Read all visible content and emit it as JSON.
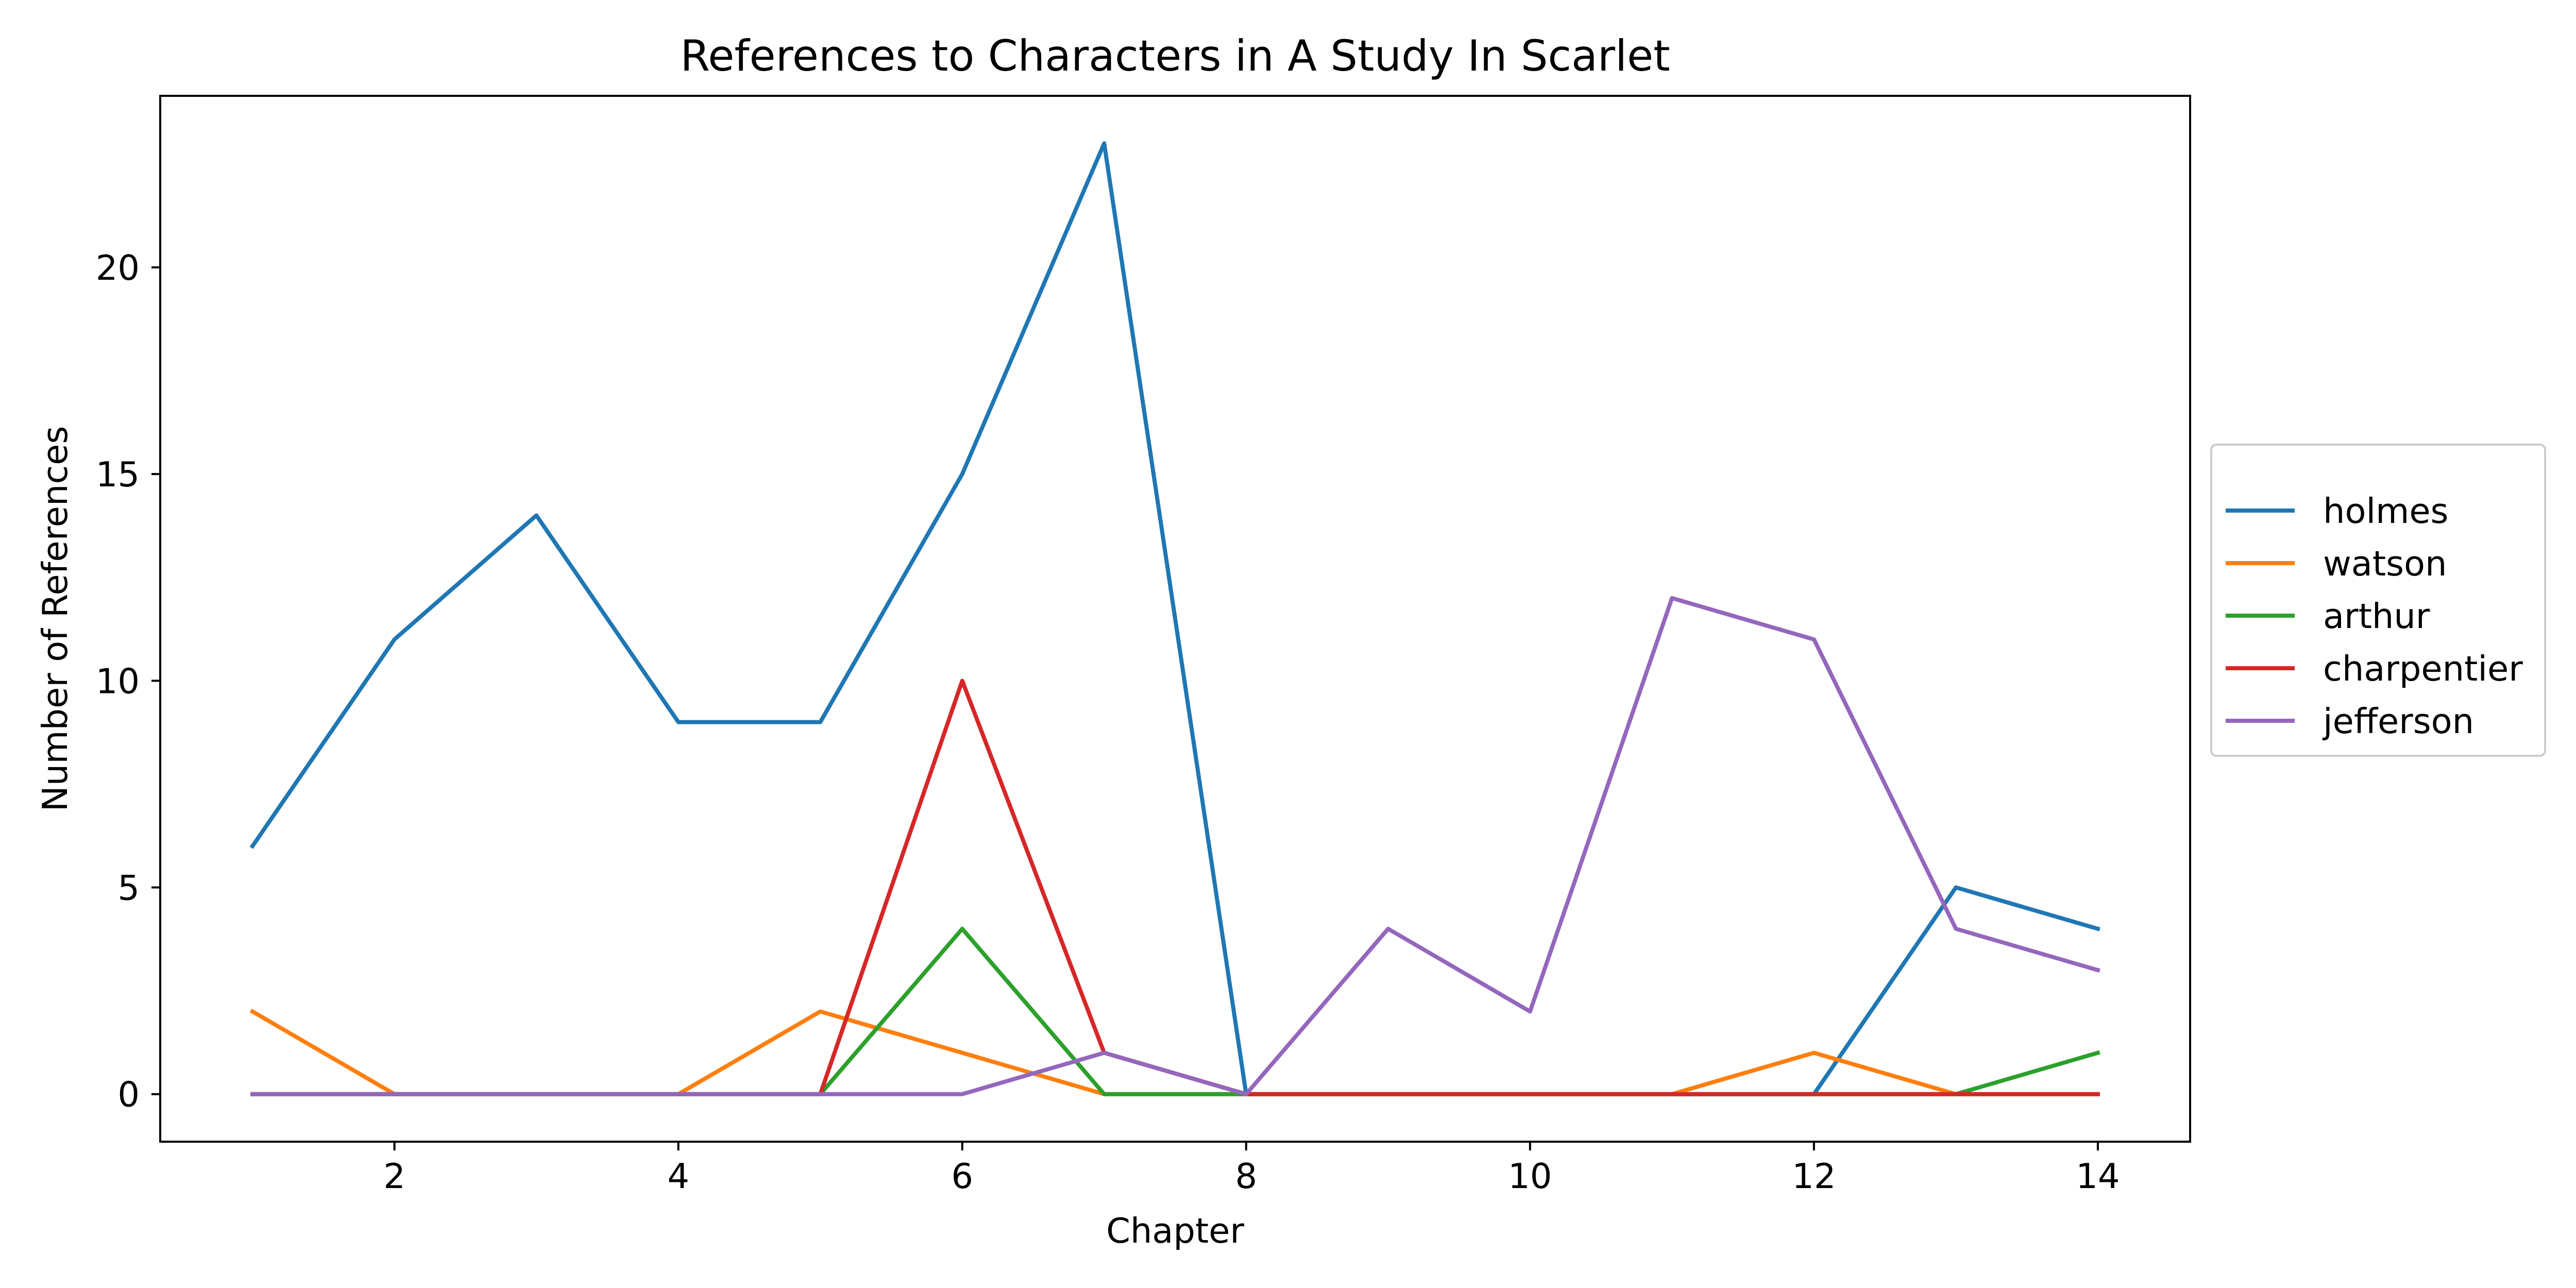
{
  "chart_data": {
    "type": "line",
    "title": "References to Characters in A Study In Scarlet",
    "xlabel": "Chapter",
    "ylabel": "Number of References",
    "x": [
      1,
      2,
      3,
      4,
      5,
      6,
      7,
      8,
      9,
      10,
      11,
      12,
      13,
      14
    ],
    "xlim": [
      0.35,
      14.65
    ],
    "ylim": [
      -1.15,
      24.15
    ],
    "xticks": [
      2,
      4,
      6,
      8,
      10,
      12,
      14
    ],
    "yticks": [
      0,
      5,
      10,
      15,
      20
    ],
    "grid": false,
    "legend_position": "center-right-outside",
    "series": [
      {
        "name": "holmes",
        "color": "#1f77b4",
        "values": [
          6,
          11,
          14,
          9,
          9,
          15,
          23,
          0,
          0,
          0,
          0,
          0,
          5,
          4
        ]
      },
      {
        "name": "watson",
        "color": "#ff7f0e",
        "values": [
          2,
          0,
          0,
          0,
          2,
          1,
          0,
          0,
          0,
          0,
          0,
          1,
          0,
          0
        ]
      },
      {
        "name": "arthur",
        "color": "#2ca02c",
        "values": [
          0,
          0,
          0,
          0,
          0,
          4,
          0,
          0,
          0,
          0,
          0,
          0,
          0,
          1
        ]
      },
      {
        "name": "charpentier",
        "color": "#d62728",
        "values": [
          0,
          0,
          0,
          0,
          0,
          10,
          1,
          0,
          0,
          0,
          0,
          0,
          0,
          0
        ]
      },
      {
        "name": "jefferson",
        "color": "#9467bd",
        "values": [
          0,
          0,
          0,
          0,
          0,
          0,
          1,
          0,
          4,
          2,
          12,
          11,
          4,
          3
        ]
      }
    ]
  }
}
